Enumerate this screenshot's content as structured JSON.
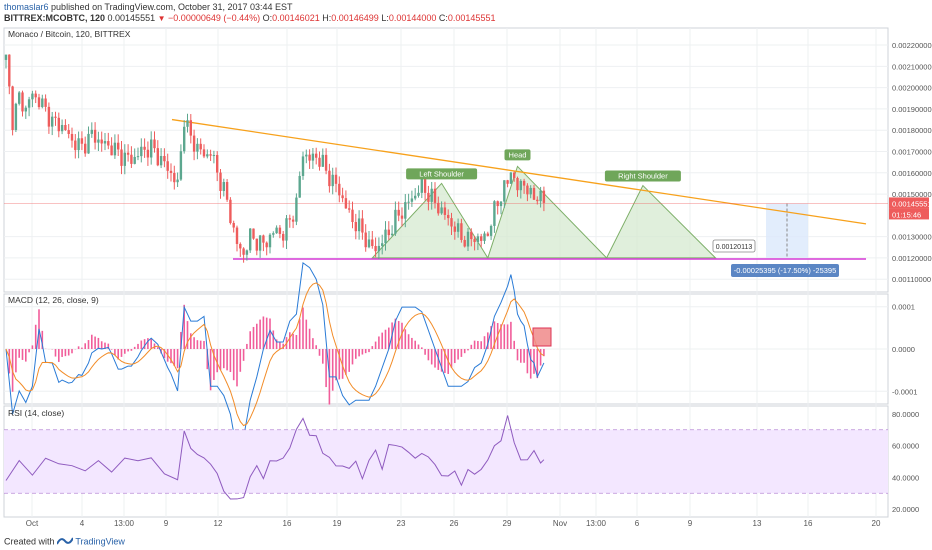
{
  "header": {
    "user": "thomaslar6",
    "published": "published on TradingView.com, October 31, 2017 03:44 EST",
    "symbol": "BITTREX:MCOBTC, 120",
    "last": "0.00145551",
    "change": "−0.00000649 (−0.44%)",
    "o_label": "O:",
    "o": "0.00146021",
    "h_label": "H:",
    "h": "0.00146499",
    "l_label": "L:",
    "l": "0.00144000",
    "c_label": "C:",
    "c": "0.00145551"
  },
  "footer": {
    "created_with": "Created with",
    "brand": "TradingView"
  },
  "colors": {
    "up": "#5ca78f",
    "down": "#ee5c5c",
    "trend": "#f7a11b",
    "support": "#d63ad6",
    "pattern_fill": "#d6ead0",
    "pattern_stroke": "#7cae67",
    "macd": "#2a7bd6",
    "signal": "#f28c28",
    "hist": "#f15d9a",
    "rsi": "#8f5bbf",
    "rsi_band": "#f3e7ff",
    "target_box": "#dbe9fb",
    "grid": "#eef0f2",
    "axis_text": "#555"
  },
  "chart_data": [
    {
      "type": "candlestick",
      "title": "Monaco / Bitcoin, 120, BITTREX",
      "x_ticks": [
        "Oct",
        "4",
        "13:00",
        "9",
        "12",
        "16",
        "19",
        "23",
        "26",
        "29",
        "Nov",
        "13:00",
        "6",
        "9",
        "13",
        "16",
        "20"
      ],
      "y_ticks": [
        "0.00220000",
        "0.00210000",
        "0.00200000",
        "0.00190000",
        "0.00180000",
        "0.00170000",
        "0.00160000",
        "0.00150000",
        "0.00130000",
        "0.00120000",
        "0.00110000"
      ],
      "ylim": [
        0.00104,
        0.00228
      ],
      "price_path": [
        [
          0,
          0.00213
        ],
        [
          2,
          0.00185
        ],
        [
          4,
          0.00195
        ],
        [
          6,
          0.0019
        ],
        [
          8,
          0.00197
        ],
        [
          11,
          0.00192
        ],
        [
          14,
          0.00184
        ],
        [
          17,
          0.00182
        ],
        [
          20,
          0.00175
        ],
        [
          23,
          0.00172
        ],
        [
          26,
          0.00178
        ],
        [
          29,
          0.00174
        ],
        [
          32,
          0.00172
        ],
        [
          35,
          0.00168
        ],
        [
          38,
          0.00166
        ],
        [
          41,
          0.0017
        ],
        [
          44,
          0.00172
        ],
        [
          47,
          0.00166
        ],
        [
          50,
          0.0016
        ],
        [
          52,
          0.00154
        ],
        [
          54,
          0.00186
        ],
        [
          56,
          0.00176
        ],
        [
          58,
          0.00172
        ],
        [
          60,
          0.00168
        ],
        [
          62,
          0.0017
        ],
        [
          64,
          0.0016
        ],
        [
          66,
          0.00152
        ],
        [
          68,
          0.0014
        ],
        [
          70,
          0.00126
        ],
        [
          72,
          0.00122
        ],
        [
          74,
          0.0013
        ],
        [
          76,
          0.00128
        ],
        [
          78,
          0.00126
        ],
        [
          80,
          0.0013
        ],
        [
          82,
          0.00133
        ],
        [
          84,
          0.00131
        ],
        [
          86,
          0.00138
        ],
        [
          88,
          0.00145
        ],
        [
          90,
          0.0017
        ],
        [
          92,
          0.00166
        ],
        [
          94,
          0.00168
        ],
        [
          96,
          0.00164
        ],
        [
          98,
          0.00158
        ],
        [
          100,
          0.00154
        ],
        [
          102,
          0.00148
        ],
        [
          104,
          0.0014
        ],
        [
          106,
          0.00136
        ],
        [
          108,
          0.00132
        ],
        [
          110,
          0.00126
        ],
        [
          112,
          0.00124
        ],
        [
          114,
          0.00128
        ],
        [
          116,
          0.00132
        ],
        [
          118,
          0.00138
        ],
        [
          120,
          0.00142
        ],
        [
          122,
          0.00146
        ],
        [
          124,
          0.0015
        ],
        [
          126,
          0.00154
        ],
        [
          128,
          0.0015
        ],
        [
          130,
          0.00146
        ],
        [
          132,
          0.00142
        ],
        [
          134,
          0.00138
        ],
        [
          136,
          0.00134
        ],
        [
          138,
          0.0013
        ],
        [
          140,
          0.00128
        ],
        [
          142,
          0.0013
        ],
        [
          144,
          0.00128
        ],
        [
          146,
          0.00132
        ],
        [
          148,
          0.00142
        ],
        [
          150,
          0.0015
        ],
        [
          152,
          0.00155
        ],
        [
          153,
          0.00162
        ],
        [
          155,
          0.00152
        ],
        [
          157,
          0.00156
        ],
        [
          159,
          0.00148
        ],
        [
          161,
          0.0015
        ],
        [
          163,
          0.00146
        ]
      ],
      "annotations": [
        "Left Shoulder",
        "Head",
        "Right Shoulder"
      ],
      "target_box_label": "0.00120113",
      "measure_label": "-0.00025395 (-17.50%) -25395",
      "price_tag": "0.00145551",
      "time_tag": "01:15:46"
    },
    {
      "type": "line",
      "title": "MACD (12, 26, close, 9)",
      "y_ticks": [
        "0.0001",
        "0.0000",
        "-0.0001"
      ],
      "ylim": [
        -0.00013,
        0.00013
      ]
    },
    {
      "type": "line",
      "title": "RSI (14, close)",
      "y_ticks": [
        "80.0000",
        "60.0000",
        "40.0000",
        "20.0000"
      ],
      "ylim": [
        15,
        85
      ],
      "bands": [
        30,
        70
      ],
      "rsi_path": [
        [
          0,
          38
        ],
        [
          4,
          48
        ],
        [
          8,
          44
        ],
        [
          12,
          52
        ],
        [
          16,
          46
        ],
        [
          20,
          50
        ],
        [
          24,
          44
        ],
        [
          28,
          48
        ],
        [
          32,
          46
        ],
        [
          36,
          52
        ],
        [
          40,
          48
        ],
        [
          44,
          55
        ],
        [
          48,
          42
        ],
        [
          52,
          36
        ],
        [
          54,
          72
        ],
        [
          56,
          58
        ],
        [
          58,
          52
        ],
        [
          60,
          55
        ],
        [
          62,
          48
        ],
        [
          64,
          40
        ],
        [
          66,
          34
        ],
        [
          68,
          26
        ],
        [
          70,
          24
        ],
        [
          72,
          30
        ],
        [
          74,
          40
        ],
        [
          76,
          45
        ],
        [
          78,
          42
        ],
        [
          80,
          50
        ],
        [
          82,
          48
        ],
        [
          84,
          55
        ],
        [
          86,
          58
        ],
        [
          88,
          68
        ],
        [
          90,
          80
        ],
        [
          92,
          66
        ],
        [
          94,
          64
        ],
        [
          96,
          58
        ],
        [
          98,
          52
        ],
        [
          100,
          45
        ],
        [
          102,
          50
        ],
        [
          104,
          45
        ],
        [
          106,
          48
        ],
        [
          108,
          42
        ],
        [
          110,
          50
        ],
        [
          112,
          55
        ],
        [
          114,
          48
        ],
        [
          116,
          60
        ],
        [
          118,
          58
        ],
        [
          120,
          62
        ],
        [
          122,
          55
        ],
        [
          124,
          50
        ],
        [
          126,
          58
        ],
        [
          128,
          52
        ],
        [
          130,
          46
        ],
        [
          132,
          44
        ],
        [
          134,
          40
        ],
        [
          136,
          42
        ],
        [
          138,
          38
        ],
        [
          140,
          44
        ],
        [
          142,
          40
        ],
        [
          144,
          48
        ],
        [
          146,
          50
        ],
        [
          148,
          58
        ],
        [
          150,
          66
        ],
        [
          152,
          78
        ],
        [
          154,
          60
        ],
        [
          156,
          54
        ],
        [
          158,
          50
        ],
        [
          160,
          55
        ],
        [
          162,
          52
        ],
        [
          163,
          50
        ]
      ]
    }
  ]
}
